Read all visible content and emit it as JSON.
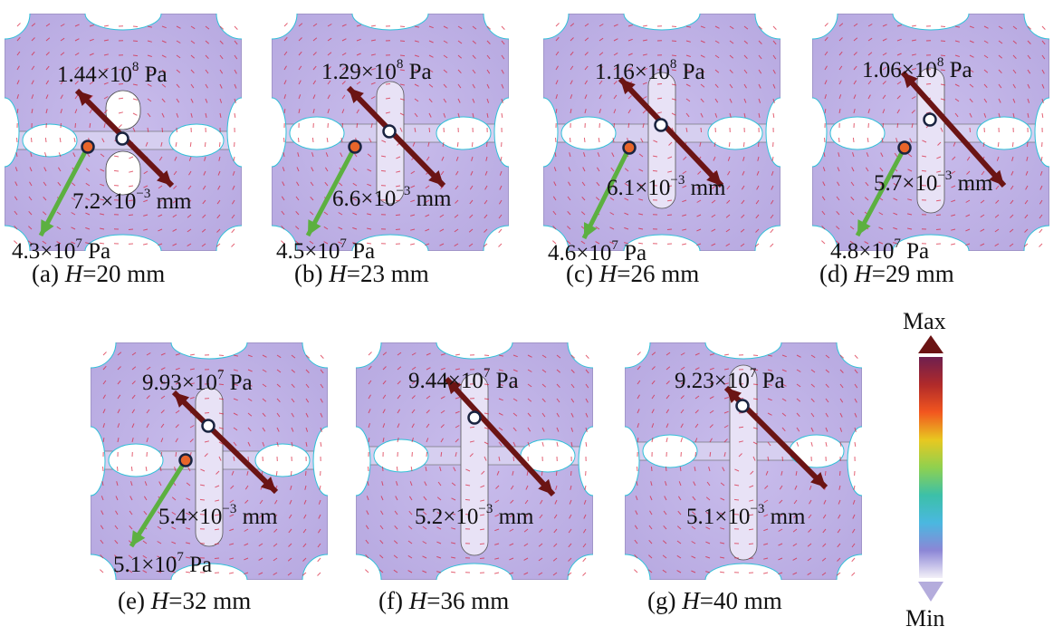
{
  "panels": [
    {
      "id": "a",
      "caption_prefix": "(a)",
      "var": "H",
      "eq": "=",
      "value": "20 mm",
      "stress_max": {
        "coef": "1.44×10",
        "exp": "8",
        "unit": " Pa"
      },
      "disp": {
        "coef": "7.2×10",
        "exp": "−3",
        "unit": " mm"
      },
      "stress_min": {
        "coef": "4.3×10",
        "exp": "7",
        "unit": " Pa"
      }
    },
    {
      "id": "b",
      "caption_prefix": "(b)",
      "var": "H",
      "eq": "=",
      "value": "23 mm",
      "stress_max": {
        "coef": "1.29×10",
        "exp": "8",
        "unit": " Pa"
      },
      "disp": {
        "coef": "6.6×10",
        "exp": "−3",
        "unit": " mm"
      },
      "stress_min": {
        "coef": "4.5×10",
        "exp": "7",
        "unit": " Pa"
      }
    },
    {
      "id": "c",
      "caption_prefix": "(c)",
      "var": "H",
      "eq": "=",
      "value": "26 mm",
      "stress_max": {
        "coef": "1.16×10",
        "exp": "8",
        "unit": " Pa"
      },
      "disp": {
        "coef": "6.1×10",
        "exp": "−3",
        "unit": " mm"
      },
      "stress_min": {
        "coef": "4.6×10",
        "exp": "7",
        "unit": " Pa"
      }
    },
    {
      "id": "d",
      "caption_prefix": "(d)",
      "var": "H",
      "eq": "=",
      "value": "29 mm",
      "stress_max": {
        "coef": "1.06×10",
        "exp": "8",
        "unit": " Pa"
      },
      "disp": {
        "coef": "5.7×10",
        "exp": "−3",
        "unit": " mm"
      },
      "stress_min": {
        "coef": "4.8×10",
        "exp": "7",
        "unit": " Pa"
      }
    },
    {
      "id": "e",
      "caption_prefix": "(e)",
      "var": "H",
      "eq": "=",
      "value": "32 mm",
      "stress_max": {
        "coef": "9.93×10",
        "exp": "7",
        "unit": " Pa"
      },
      "disp": {
        "coef": "5.4×10",
        "exp": "−3",
        "unit": " mm"
      },
      "stress_min": {
        "coef": "5.1×10",
        "exp": "7",
        "unit": " Pa"
      }
    },
    {
      "id": "f",
      "caption_prefix": "(f)",
      "var": "H",
      "eq": "=",
      "value": "36 mm",
      "stress_max": {
        "coef": "9.44×10",
        "exp": "7",
        "unit": " Pa"
      },
      "disp": {
        "coef": "5.2×10",
        "exp": "−3",
        "unit": " mm"
      }
    },
    {
      "id": "g",
      "caption_prefix": "(g)",
      "var": "H",
      "eq": "=",
      "value": "40 mm",
      "stress_max": {
        "coef": "9.23×10",
        "exp": "7",
        "unit": " Pa"
      },
      "disp": {
        "coef": "5.1×10",
        "exp": "−3",
        "unit": " mm"
      }
    }
  ],
  "colorbar": {
    "max_label": "Max",
    "min_label": "Min",
    "stops": [
      "#6e1f4f",
      "#b02a2a",
      "#f2561f",
      "#e8c820",
      "#8fd14f",
      "#3cc0a8",
      "#4ab8e0",
      "#8c86d6",
      "#f3f0f8"
    ]
  },
  "colors": {
    "field": "#b6a8e0",
    "arrow_max": "#6b1414",
    "arrow_min": "#5cb040",
    "dot_max": "#ffffff",
    "dot_min": "#e8652a",
    "vectors": "#d8203a"
  }
}
